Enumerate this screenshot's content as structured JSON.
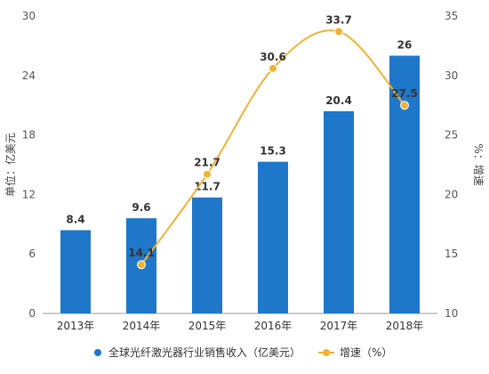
{
  "chart_data": {
    "type": "bar",
    "categories": [
      "2013年",
      "2014年",
      "2015年",
      "2016年",
      "2017年",
      "2018年"
    ],
    "series": [
      {
        "name": "全球光纤激光器行业销售收入（亿美元）",
        "type": "bar",
        "axis": "left",
        "values": [
          8.4,
          9.6,
          11.7,
          15.3,
          20.4,
          26
        ],
        "labels": [
          "8.4",
          "9.6",
          "11.7",
          "15.3",
          "20.4",
          "26"
        ],
        "color": "#1f77c9"
      },
      {
        "name": "增速（%）",
        "type": "line",
        "axis": "right",
        "values": [
          null,
          14.1,
          21.7,
          30.6,
          33.7,
          27.5
        ],
        "labels": [
          "",
          "14.1",
          "21.7",
          "30.6",
          "33.7",
          "27.5"
        ],
        "color": "#f2b233"
      }
    ],
    "y_left": {
      "label": "单位：亿美元",
      "min": 0,
      "max": 30,
      "ticks": [
        0,
        6,
        12,
        18,
        24,
        30
      ],
      "tick_labels": [
        "0",
        "6",
        "12",
        "18",
        "24",
        "30"
      ]
    },
    "y_right": {
      "label": "%：增速",
      "min": 10,
      "max": 35,
      "ticks": [
        10,
        15,
        20,
        25,
        30,
        35
      ],
      "tick_labels": [
        "10",
        "15",
        "20",
        "25",
        "30",
        "35"
      ]
    },
    "grid": false,
    "legend": "bottom"
  }
}
